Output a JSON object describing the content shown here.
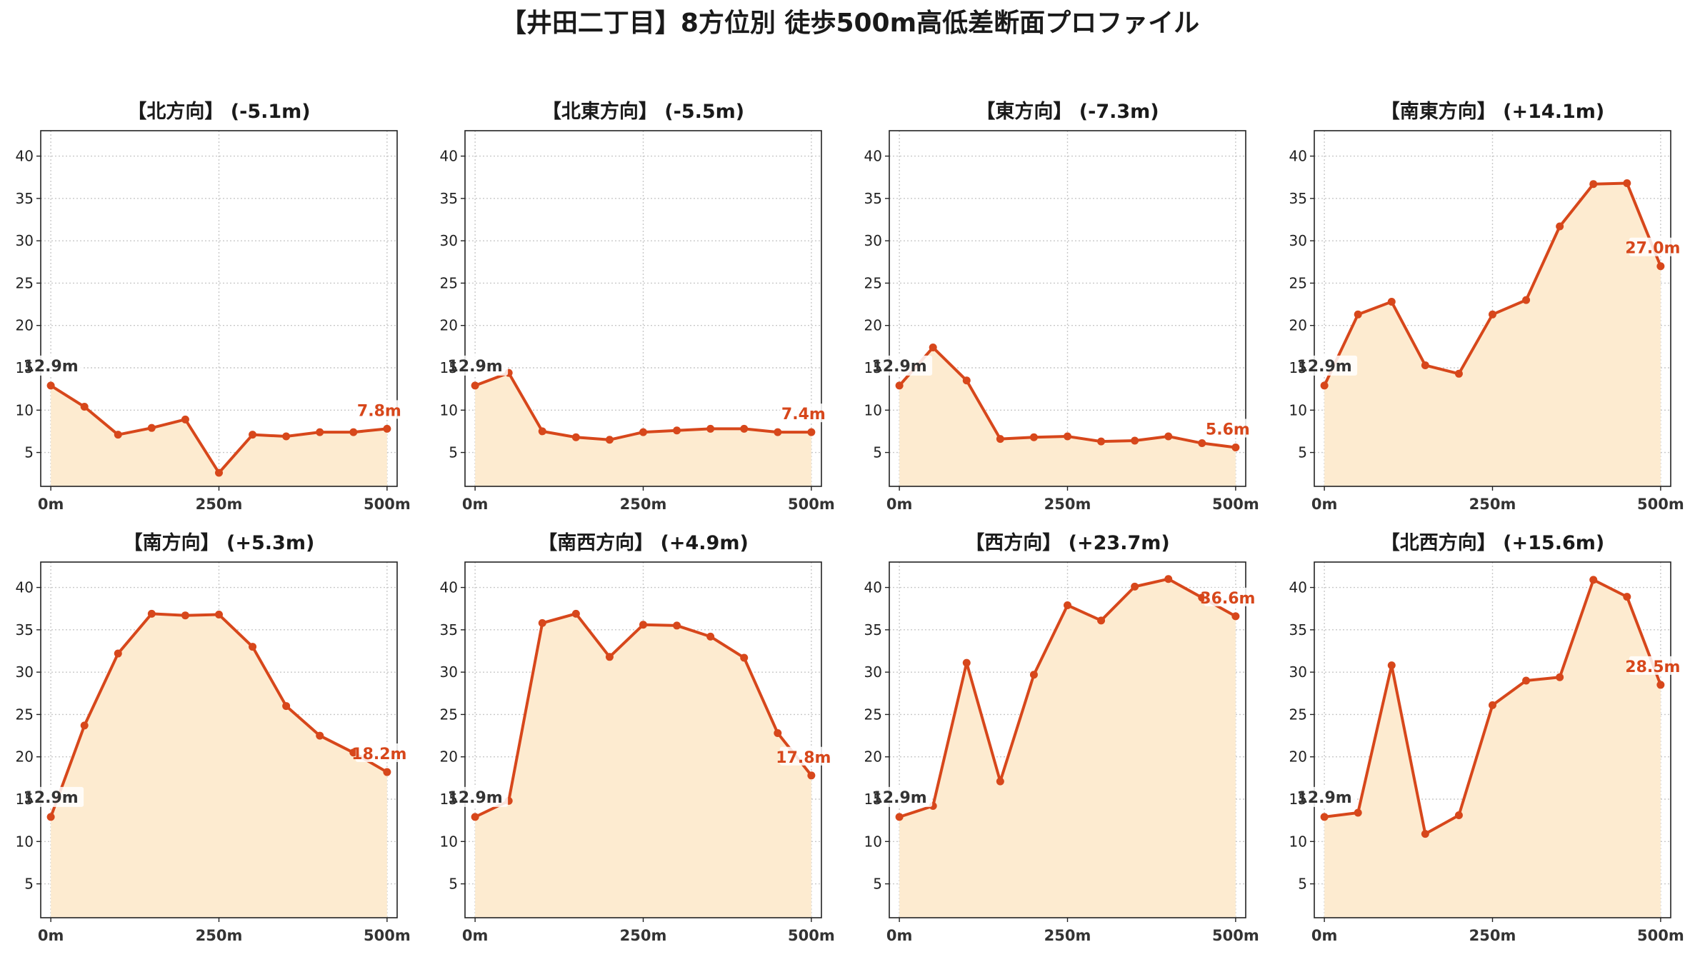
{
  "title": "【井田二丁目】8方位別 徒歩500m高低差断面プロファイル",
  "colors": {
    "line": "#d7471b",
    "fill": "#fdebd0",
    "grid": "#c8c8c8",
    "axis": "#222222",
    "start_label": "#333333"
  },
  "chart_data": [
    {
      "type": "area",
      "title": "【北方向】 (-5.1m)",
      "xticklabels": [
        "0m",
        "250m",
        "500m"
      ],
      "xticks": [
        0,
        250,
        500
      ],
      "yticks": [
        5,
        10,
        15,
        20,
        25,
        30,
        35,
        40
      ],
      "xlim": [
        -15,
        515
      ],
      "ylim": [
        1,
        43
      ],
      "grid": true,
      "x": [
        0,
        50,
        100,
        150,
        200,
        250,
        300,
        350,
        400,
        450,
        500
      ],
      "y": [
        12.9,
        10.4,
        7.1,
        7.9,
        8.9,
        2.6,
        7.1,
        6.9,
        7.4,
        7.4,
        7.8
      ],
      "start_label": "12.9m",
      "end_label": "7.8m"
    },
    {
      "type": "area",
      "title": "【北東方向】 (-5.5m)",
      "xticklabels": [
        "0m",
        "250m",
        "500m"
      ],
      "xticks": [
        0,
        250,
        500
      ],
      "yticks": [
        5,
        10,
        15,
        20,
        25,
        30,
        35,
        40
      ],
      "xlim": [
        -15,
        515
      ],
      "ylim": [
        1,
        43
      ],
      "grid": true,
      "x": [
        0,
        50,
        100,
        150,
        200,
        250,
        300,
        350,
        400,
        450,
        500
      ],
      "y": [
        12.9,
        14.4,
        7.5,
        6.8,
        6.5,
        7.4,
        7.6,
        7.8,
        7.8,
        7.4,
        7.4
      ],
      "start_label": "12.9m",
      "end_label": "7.4m"
    },
    {
      "type": "area",
      "title": "【東方向】 (-7.3m)",
      "xticklabels": [
        "0m",
        "250m",
        "500m"
      ],
      "xticks": [
        0,
        250,
        500
      ],
      "yticks": [
        5,
        10,
        15,
        20,
        25,
        30,
        35,
        40
      ],
      "xlim": [
        -15,
        515
      ],
      "ylim": [
        1,
        43
      ],
      "grid": true,
      "x": [
        0,
        50,
        100,
        150,
        200,
        250,
        300,
        350,
        400,
        450,
        500
      ],
      "y": [
        12.9,
        17.4,
        13.5,
        6.6,
        6.8,
        6.9,
        6.3,
        6.4,
        6.9,
        6.1,
        5.6
      ],
      "start_label": "12.9m",
      "end_label": "5.6m"
    },
    {
      "type": "area",
      "title": "【南東方向】 (+14.1m)",
      "xticklabels": [
        "0m",
        "250m",
        "500m"
      ],
      "xticks": [
        0,
        250,
        500
      ],
      "yticks": [
        5,
        10,
        15,
        20,
        25,
        30,
        35,
        40
      ],
      "xlim": [
        -15,
        515
      ],
      "ylim": [
        1,
        43
      ],
      "grid": true,
      "x": [
        0,
        50,
        100,
        150,
        200,
        250,
        300,
        350,
        400,
        450,
        500
      ],
      "y": [
        12.9,
        21.3,
        22.8,
        15.3,
        14.3,
        21.3,
        23.0,
        31.7,
        36.7,
        36.8,
        27.0
      ],
      "start_label": "12.9m",
      "end_label": "27.0m"
    },
    {
      "type": "area",
      "title": "【南方向】 (+5.3m)",
      "xticklabels": [
        "0m",
        "250m",
        "500m"
      ],
      "xticks": [
        0,
        250,
        500
      ],
      "yticks": [
        5,
        10,
        15,
        20,
        25,
        30,
        35,
        40
      ],
      "xlim": [
        -15,
        515
      ],
      "ylim": [
        1,
        43
      ],
      "grid": true,
      "x": [
        0,
        50,
        100,
        150,
        200,
        250,
        300,
        350,
        400,
        450,
        500
      ],
      "y": [
        12.9,
        23.7,
        32.2,
        36.9,
        36.7,
        36.8,
        33.0,
        26.0,
        22.5,
        20.5,
        18.2
      ],
      "start_label": "12.9m",
      "end_label": "18.2m"
    },
    {
      "type": "area",
      "title": "【南西方向】 (+4.9m)",
      "xticklabels": [
        "0m",
        "250m",
        "500m"
      ],
      "xticks": [
        0,
        250,
        500
      ],
      "yticks": [
        5,
        10,
        15,
        20,
        25,
        30,
        35,
        40
      ],
      "xlim": [
        -15,
        515
      ],
      "ylim": [
        1,
        43
      ],
      "grid": true,
      "x": [
        0,
        50,
        100,
        150,
        200,
        250,
        300,
        350,
        400,
        450,
        500
      ],
      "y": [
        12.9,
        14.8,
        35.8,
        36.9,
        31.8,
        35.6,
        35.5,
        34.2,
        31.7,
        22.8,
        17.8
      ],
      "start_label": "12.9m",
      "end_label": "17.8m"
    },
    {
      "type": "area",
      "title": "【西方向】 (+23.7m)",
      "xticklabels": [
        "0m",
        "250m",
        "500m"
      ],
      "xticks": [
        0,
        250,
        500
      ],
      "yticks": [
        5,
        10,
        15,
        20,
        25,
        30,
        35,
        40
      ],
      "xlim": [
        -15,
        515
      ],
      "ylim": [
        1,
        43
      ],
      "grid": true,
      "x": [
        0,
        50,
        100,
        150,
        200,
        250,
        300,
        350,
        400,
        450,
        500
      ],
      "y": [
        12.9,
        14.2,
        31.1,
        17.1,
        29.7,
        37.9,
        36.1,
        40.1,
        41.0,
        38.8,
        36.6
      ],
      "start_label": "12.9m",
      "end_label": "36.6m"
    },
    {
      "type": "area",
      "title": "【北西方向】 (+15.6m)",
      "xticklabels": [
        "0m",
        "250m",
        "500m"
      ],
      "xticks": [
        0,
        250,
        500
      ],
      "yticks": [
        5,
        10,
        15,
        20,
        25,
        30,
        35,
        40
      ],
      "xlim": [
        -15,
        515
      ],
      "ylim": [
        1,
        43
      ],
      "grid": true,
      "x": [
        0,
        50,
        100,
        150,
        200,
        250,
        300,
        350,
        400,
        450,
        500
      ],
      "y": [
        12.9,
        13.4,
        30.8,
        10.9,
        13.1,
        26.1,
        29.0,
        29.4,
        40.9,
        38.9,
        28.5
      ],
      "start_label": "12.9m",
      "end_label": "28.5m"
    }
  ]
}
